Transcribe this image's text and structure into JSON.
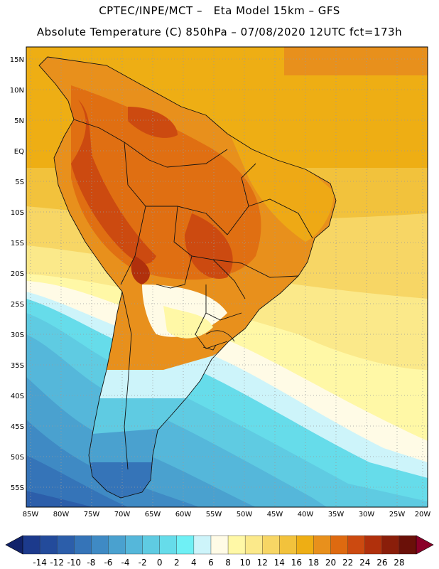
{
  "title": {
    "line1": "CPTEC/INPE/MCT –   Eta Model 15km – GFS",
    "line2": "Absolute Temperature (C) 850hPa – 07/08/2020 12UTC fct=173h"
  },
  "map": {
    "lat_labels": [
      "15N",
      "10N",
      "5N",
      "EQ",
      "5S",
      "10S",
      "15S",
      "20S",
      "25S",
      "30S",
      "35S",
      "40S",
      "45S",
      "50S",
      "55S"
    ],
    "lon_labels": [
      "85W",
      "80W",
      "75W",
      "70W",
      "65W",
      "60W",
      "55W",
      "50W",
      "45W",
      "40W",
      "35W",
      "30W",
      "25W",
      "20W"
    ],
    "lat_range": [
      17,
      -58
    ],
    "lon_range": [
      -86,
      -19
    ]
  },
  "colorbar": {
    "ticks": [
      "-14",
      "-12",
      "-10",
      "-8",
      "-6",
      "-4",
      "-2",
      "0",
      "2",
      "4",
      "6",
      "8",
      "10",
      "12",
      "14",
      "16",
      "18",
      "20",
      "22",
      "24",
      "26",
      "28"
    ],
    "colors": [
      "#1c3a8c",
      "#234b9b",
      "#2c5eaa",
      "#3574b8",
      "#3f8ac4",
      "#4aa1cf",
      "#55b7da",
      "#5fcbe2",
      "#66dcea",
      "#6ff0f5",
      "#cdf4fa",
      "#fffbe6",
      "#fff8a6",
      "#fbe98a",
      "#f7d665",
      "#f2c23c",
      "#eeae14",
      "#e8901c",
      "#de6a10",
      "#cc4a10",
      "#b0300c",
      "#8a1e0a",
      "#6a1008"
    ],
    "end_left_color": "#11226a",
    "end_right_color": "#8a0028"
  }
}
